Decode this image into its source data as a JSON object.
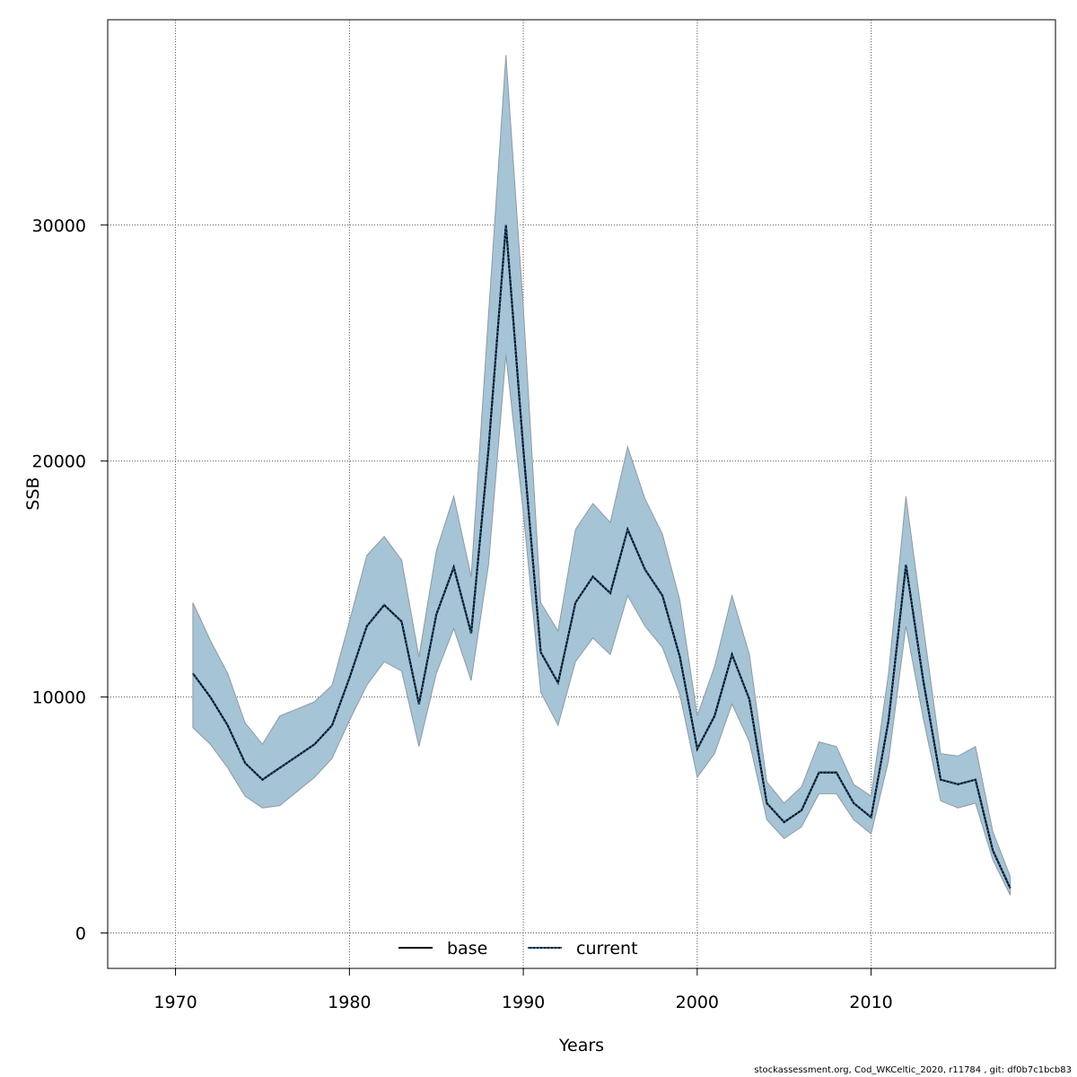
{
  "chart_data": {
    "type": "area",
    "xlabel": "Years",
    "ylabel": "SSB",
    "xlim": [
      1966.1,
      2020.6
    ],
    "ylim": [
      -1500,
      38700
    ],
    "x_ticks": [
      1970,
      1980,
      1990,
      2000,
      2010
    ],
    "y_ticks": [
      0,
      10000,
      20000,
      30000
    ],
    "grid": true,
    "legend_position": "bottom-center",
    "colors": {
      "band_fill": "#a5c4d5",
      "band_stroke": "#8f9aa3",
      "base_line": "#000000",
      "current_line": "#1f5a8a",
      "grid": "#555555"
    },
    "x": [
      1971,
      1972,
      1973,
      1974,
      1975,
      1976,
      1977,
      1978,
      1979,
      1980,
      1981,
      1982,
      1983,
      1984,
      1985,
      1986,
      1987,
      1988,
      1989,
      1990,
      1991,
      1992,
      1993,
      1994,
      1995,
      1996,
      1997,
      1998,
      1999,
      2000,
      2001,
      2002,
      2003,
      2004,
      2005,
      2006,
      2007,
      2008,
      2009,
      2010,
      2011,
      2012,
      2013,
      2014,
      2015,
      2016,
      2017,
      2018
    ],
    "series": [
      {
        "name": "base",
        "style": "solid",
        "values": [
          11000,
          10000,
          8800,
          7200,
          6500,
          7000,
          7500,
          8000,
          8800,
          10800,
          13000,
          13900,
          13200,
          9700,
          13500,
          15500,
          12700,
          20500,
          30000,
          20500,
          11900,
          10600,
          14000,
          15100,
          14400,
          17100,
          15400,
          14300,
          11700,
          7800,
          9200,
          11800,
          9900,
          5500,
          4700,
          5200,
          6800,
          6800,
          5500,
          4900,
          9000,
          15600,
          10700,
          6500,
          6300,
          6500,
          3500,
          1900
        ]
      },
      {
        "name": "current",
        "style": "dotted",
        "values": [
          11000,
          10000,
          8800,
          7200,
          6500,
          7000,
          7500,
          8000,
          8800,
          10800,
          13000,
          13900,
          13200,
          9700,
          13500,
          15500,
          12700,
          20500,
          30000,
          20500,
          11900,
          10600,
          14000,
          15100,
          14400,
          17100,
          15400,
          14300,
          11700,
          7800,
          9200,
          11800,
          9900,
          5500,
          4700,
          5200,
          6800,
          6800,
          5500,
          4900,
          9000,
          15600,
          10700,
          6500,
          6300,
          6500,
          3500,
          1900
        ]
      }
    ],
    "band": {
      "upper": [
        14000,
        12400,
        11000,
        8900,
        8000,
        9200,
        9500,
        9800,
        10500,
        13200,
        16000,
        16800,
        15800,
        11700,
        16200,
        18500,
        15100,
        26200,
        37200,
        26500,
        14000,
        12800,
        17100,
        18200,
        17400,
        20600,
        18400,
        16900,
        14100,
        9200,
        11300,
        14300,
        11800,
        6400,
        5500,
        6200,
        8100,
        7900,
        6300,
        5800,
        11000,
        18500,
        13000,
        7600,
        7500,
        7900,
        4300,
        2400
      ],
      "lower": [
        8700,
        8000,
        7000,
        5800,
        5300,
        5400,
        6000,
        6600,
        7400,
        9000,
        10500,
        11500,
        11100,
        7900,
        11000,
        12900,
        10700,
        15600,
        24500,
        17800,
        10200,
        8800,
        11500,
        12500,
        11800,
        14300,
        13000,
        12100,
        10100,
        6600,
        7600,
        9700,
        8100,
        4800,
        4000,
        4500,
        5900,
        5900,
        4800,
        4200,
        7300,
        13000,
        9100,
        5600,
        5300,
        5500,
        3100,
        1600
      ]
    }
  },
  "footer_text": "stockassessment.org, Cod_WKCeltic_2020, r11784 , git: df0b7c1bcb83"
}
